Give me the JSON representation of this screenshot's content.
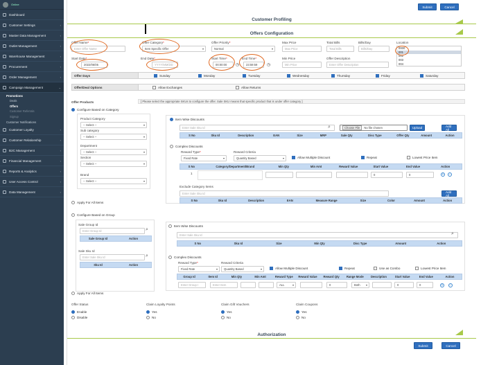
{
  "sidebar": {
    "status": "Online",
    "items": [
      {
        "label": "Dashboard"
      },
      {
        "label": "Customer Settings"
      },
      {
        "label": "Master Data Management"
      },
      {
        "label": "Outlet Management"
      },
      {
        "label": "Warehouse Management"
      },
      {
        "label": "Procurement"
      },
      {
        "label": "Order Management"
      },
      {
        "label": "Campaign Management"
      }
    ],
    "campaign_sub": {
      "promotions": "Promotions",
      "deals": "Deals",
      "offers": "Offers",
      "customer_referrals": "Customer Referrals",
      "signup": "Signup",
      "customer_notifications": "Customer Notifications"
    },
    "items_after": [
      {
        "label": "Customer Loyalty"
      },
      {
        "label": "Customer Relationship"
      },
      {
        "label": "B2C Management"
      },
      {
        "label": "Financial Management"
      },
      {
        "label": "Reports & Analytics"
      },
      {
        "label": "User Access Control"
      },
      {
        "label": "Data Management"
      }
    ]
  },
  "top": {
    "submit": "Submit",
    "cancel": "Cancel"
  },
  "customer_profiling": "Customer Profiling",
  "offers_configuration": "Offers Configuration",
  "row1": {
    "offer_name_label": "Offer Name",
    "offer_name_placeholder": "Enter Offer Name",
    "offer_category_label": "Offer Category",
    "offer_category_value": "Item Specific Offer",
    "offer_priority_label": "Offer Priority",
    "offer_priority_value": "Normal",
    "max_price_label": "Max Price",
    "max_price_placeholder": "Max Price",
    "total_bills_label": "Total Bills",
    "total_bills_placeholder": "Total Bills",
    "bills_day_label": "Bills/Day",
    "bills_day_placeholder": "Bills/Day",
    "location_label": "Location",
    "locations": [
      "0000",
      "001",
      "002",
      "003",
      "004"
    ]
  },
  "row2": {
    "start_date_label": "Start Date",
    "start_date_value": "2022/06/05",
    "end_date_label": "End Date",
    "end_date_placeholder": "YYYY/MM/DD",
    "start_time_label": "Start Time",
    "start_time_value": "00:00:00",
    "end_time_label": "End Time",
    "end_time_value": "23:59:59",
    "min_price_label": "Min Price",
    "min_price_placeholder": "Min Price",
    "offer_desc_label": "Offer Description",
    "offer_desc_placeholder": "Enter Offer Description"
  },
  "offer_days": {
    "header": "Offer Days",
    "days": [
      "Sunday",
      "Monday",
      "Tuesday",
      "Wednesday",
      "Thursday",
      "Friday",
      "Saturday"
    ]
  },
  "deal_options": {
    "header": "Offer/Deal Options",
    "allow_exchanges": "Allow Exchanges",
    "allow_returns": "Allow Returns"
  },
  "offer_products": {
    "header": "Offer Products",
    "note": "[ Please select the appropriate SKUs to configure the offer. Sale SKU means that specific product that is under offer category ]"
  },
  "category": {
    "radio_label": "Configure Based on Category",
    "product_category_label": "Product Category",
    "sub_category_label": "Sub category",
    "department_label": "Department",
    "section_label": "Section",
    "brand_label": "Brand",
    "select": "-- Select --",
    "apply_all": "Apply For All Items"
  },
  "item_wise": {
    "label": "Item Wise Discounts",
    "search_placeholder": "Enter Sale Sku Id",
    "choose_file": "Choose File",
    "no_file": "No file chosen",
    "upload": "Upload",
    "add_all": "Add All",
    "cols": [
      "S No",
      "Sku Id",
      "Description",
      "EAN",
      "Size",
      "MRP",
      "Sale Qty",
      "Disc Type",
      "Offer Qty",
      "Amount",
      "Action"
    ]
  },
  "complex": {
    "label": "Complex Discounts",
    "reward_type_label": "Reward Type",
    "reward_type_value": "Fixed Rate",
    "reward_criteria_label": "Reward Criteria",
    "reward_criteria_value": "Quantity Based",
    "allow_multiple": "Allow Multiple Discount",
    "repeat": "Repeat",
    "lowest_price": "Lowest Price Item",
    "cols": [
      "S No",
      "Category/Department/Brand",
      "Min Qty",
      "Min Amt",
      "Reward Value",
      "Start Value",
      "End Value",
      "Action"
    ],
    "row_no": "1",
    "start_val": "0",
    "end_val": "0",
    "exclude_label": "Exclude Category Items",
    "exclude_placeholder": "Enter Sale Sku Id",
    "add_all": "Add All",
    "exclude_cols": [
      "S No",
      "Sku Id",
      "Description",
      "EAN",
      "Measure Range",
      "Size",
      "Color",
      "Amount",
      "Action"
    ]
  },
  "group": {
    "radio_label": "Configure Based on Group",
    "sale_group_label": "Sale Group Id",
    "sale_group_placeholder": "Enter Group Id",
    "group_cols": [
      "Sale Group Id",
      "Action"
    ],
    "sale_sku_label": "Sale Sku Id",
    "sale_sku_placeholder": "Enter Sale Sku Id",
    "sku_cols": [
      "Sku Id",
      "Action"
    ],
    "item_wise_label": "Item Wise Discounts",
    "item_wise_placeholder": "Enter Sale Sku Id",
    "item_cols": [
      "S No",
      "Sku Id",
      "Size",
      "Min Qty",
      "Disc Type",
      "Amount",
      "Action"
    ],
    "complex_label": "Complex Discounts",
    "reward_type_label": "Reward Type",
    "reward_type_value": "Fixed Rate",
    "reward_criteria_label": "Reward Criteria",
    "reward_criteria_value": "Quantity Based",
    "allow_multiple": "Allow Multiple Discount",
    "repeat": "Repeat",
    "use_combo": "Use as Combo",
    "lowest_price": "Lowest Price Item",
    "complex_cols": [
      "Group Id",
      "Item Id",
      "Min Qty",
      "Min Amt",
      "Reward Type",
      "Reward Value",
      "Reward Qty",
      "Range Mode",
      "Description",
      "Start Value",
      "End Value",
      "Action"
    ],
    "group_input_placeholder": "Enter Group I",
    "item_input_placeholder": "Enter Item",
    "reward_type_cell": "ALL",
    "reward_qty": "0",
    "range_mode": "Both",
    "start_val": "0",
    "end_val": "0",
    "apply_all": "Apply For All Items"
  },
  "status": {
    "offer_status_label": "Offer Status",
    "enable": "Enable",
    "disable": "Disable",
    "loyalty_label": "Claim Loyalty Points",
    "gift_label": "Claim Gift Vouchers",
    "coupons_label": "Claim Coupons",
    "yes": "Yes",
    "no": "No"
  },
  "authorization": "Authorization",
  "bottom": {
    "submit": "Submit",
    "cancel": "Cancel"
  }
}
